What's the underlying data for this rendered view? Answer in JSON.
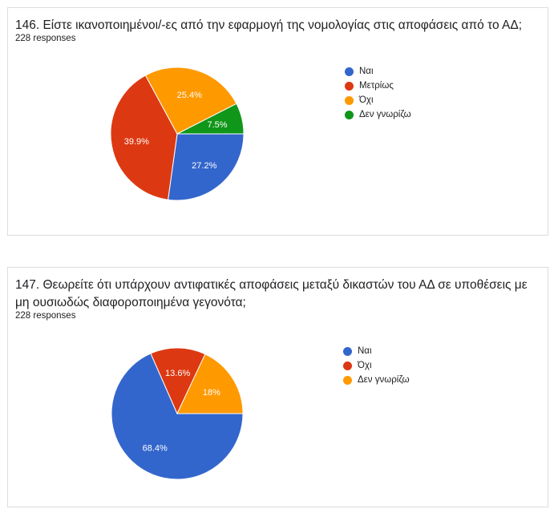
{
  "chart_data": [
    {
      "type": "pie",
      "title": "146. Είστε ικανοποιημένοι/-ες από την εφαρμογή της νομολογίας στις αποφάσεις από το ΑΔ;",
      "subtitle": "228 responses",
      "legend_position": "right",
      "categories": [
        "Ναι",
        "Μετρίως",
        "Όχι",
        "Δεν γνωρίζω"
      ],
      "values": [
        27.2,
        39.9,
        25.4,
        7.5
      ],
      "labels": [
        "27.2%",
        "39.9%",
        "25.4%",
        "7.5%"
      ],
      "colors": [
        "#3366cc",
        "#dc3912",
        "#ff9900",
        "#109618"
      ]
    },
    {
      "type": "pie",
      "title": "147. Θεωρείτε ότι υπάρχουν αντιφατικές αποφάσεις μεταξύ δικαστών του ΑΔ σε υποθέσεις με μη ουσιωδώς διαφοροποιημένα γεγονότα;",
      "subtitle": "228 responses",
      "legend_position": "right",
      "categories": [
        "Ναι",
        "Όχι",
        "Δεν γνωρίζω"
      ],
      "values": [
        68.4,
        13.6,
        18
      ],
      "labels": [
        "68.4%",
        "13.6%",
        "18%"
      ],
      "colors": [
        "#3366cc",
        "#dc3912",
        "#ff9900"
      ]
    }
  ]
}
